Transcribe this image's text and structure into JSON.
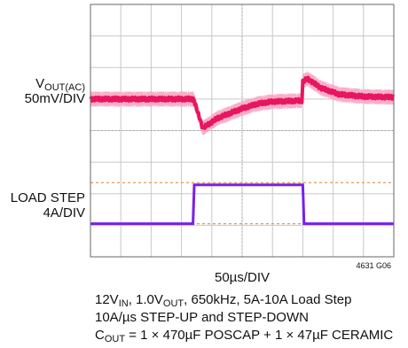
{
  "chart_data": {
    "type": "line",
    "title": "",
    "xlabel": "50µs/DIV",
    "x_divisions": 10,
    "y_divisions": 8,
    "figure_id": "4631 G06",
    "colors": {
      "vout_trace": "#e8155f",
      "vout_envelope": "#f7a6c4",
      "load_trace": "#7a1fe8",
      "reference_line": "#e69a55",
      "grid": "#c8c8c8",
      "frame": "#666666"
    },
    "series": [
      {
        "name": "",
        "label": {
          "main": "V",
          "sub": "OUT(AC)",
          "scale": "50mV/DIV"
        },
        "unit": "div",
        "x_div": [
          0,
          3.4,
          3.7,
          4.2,
          5,
          5.5,
          6.0,
          6.99,
          7.0,
          7.15,
          7.6,
          8.2,
          9,
          10
        ],
        "y_div": [
          5.0,
          5.0,
          4.08,
          4.4,
          4.7,
          4.85,
          4.92,
          4.95,
          5.55,
          5.65,
          5.35,
          5.15,
          5.08,
          5.06
        ]
      },
      {
        "name": "",
        "label": {
          "main": "LOAD STEP",
          "scale": "4A/DIV"
        },
        "unit": "div",
        "x_div": [
          0,
          3.38,
          3.42,
          7.0,
          7.04,
          10
        ],
        "y_div": [
          1.05,
          1.05,
          2.28,
          2.28,
          1.05,
          1.05
        ]
      }
    ],
    "reference_lines_div": [
      2.35,
      1.05
    ]
  },
  "caption": {
    "line1": {
      "v": "12V",
      "v_sub": "IN",
      "sep1": ", 1.0V",
      "v2_sub": "OUT",
      "rest": ", 650kHz, 5A-10A Load Step"
    },
    "line2": "10A/µs STEP-UP and STEP-DOWN",
    "line3": {
      "c": "C",
      "c_sub": "OUT",
      "rest": " = 1 × 470µF POSCAP + 1 × 47µF CERAMIC"
    }
  }
}
